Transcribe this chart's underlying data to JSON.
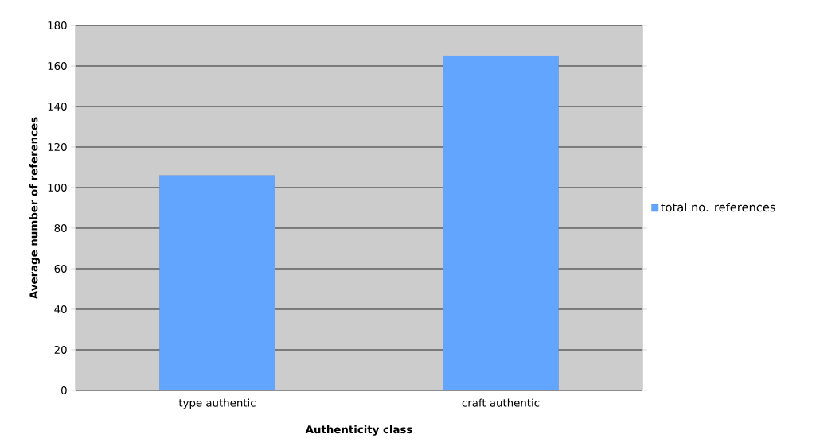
{
  "chart_data": {
    "type": "bar",
    "xlabel": "Authenticity class",
    "ylabel": "Average number of references",
    "categories": [
      "type authentic",
      "craft authentic"
    ],
    "series": [
      {
        "name": "total no. references",
        "color": "#61a5ff",
        "values": [
          106,
          165
        ]
      }
    ],
    "ylim": [
      0,
      180
    ],
    "yticks": [
      0,
      20,
      40,
      60,
      80,
      100,
      120,
      140,
      160,
      180
    ],
    "grid": "y",
    "legend": "right"
  }
}
